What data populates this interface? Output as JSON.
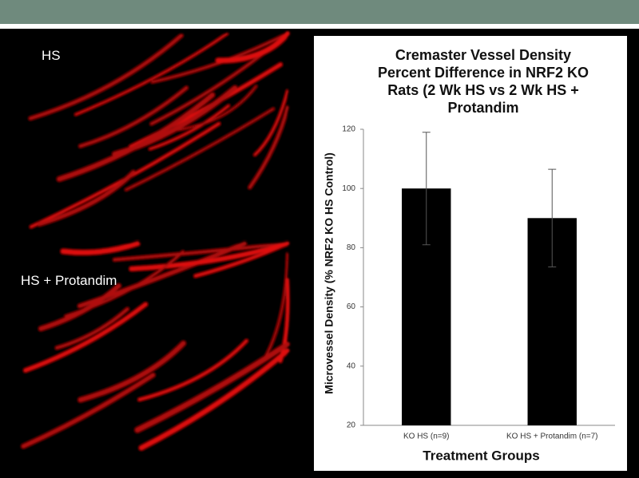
{
  "image_labels": [
    "HS",
    "HS + Protandim"
  ],
  "chart_data": {
    "type": "bar",
    "title": "Cremaster Vessel Density Percent Difference in NRF2 KO Rats (2 Wk HS vs 2 Wk HS + Protandim",
    "x_label": "Treatment Groups",
    "y_label": "Microvessel Density (% NRF2 KO HS Control)",
    "categories": [
      "KO HS (n=9)",
      "KO HS + Protandim (n=7)"
    ],
    "values": [
      100,
      90
    ],
    "errors": [
      19,
      16.5
    ],
    "color": "#000000",
    "ylim": [
      20,
      120
    ],
    "yticks": [
      20,
      40,
      60,
      80,
      100,
      120
    ],
    "grid": false
  }
}
